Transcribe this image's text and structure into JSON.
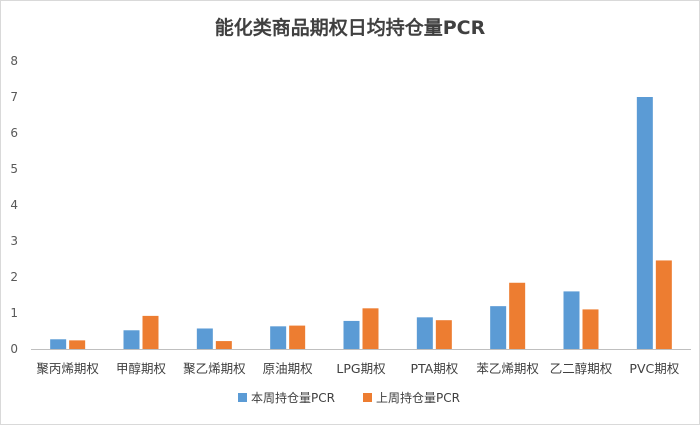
{
  "chart_data": {
    "type": "bar",
    "title": "能化类商品期权日均持仓量PCR",
    "xlabel": "",
    "ylabel": "",
    "ylim": [
      0,
      8
    ],
    "yticks": [
      0,
      1,
      2,
      3,
      4,
      5,
      6,
      7,
      8
    ],
    "grid": false,
    "legend_position": "bottom",
    "categories": [
      "聚丙烯期权",
      "甲醇期权",
      "聚乙烯期权",
      "原油期权",
      "LPG期权",
      "PTA期权",
      "苯乙烯期权",
      "乙二醇期权",
      "PVC期权"
    ],
    "series": [
      {
        "name": "本周持仓量PCR",
        "color": "#5b9bd5",
        "values": [
          0.27,
          0.52,
          0.57,
          0.63,
          0.78,
          0.88,
          1.19,
          1.6,
          7.0
        ]
      },
      {
        "name": "上周持仓量PCR",
        "color": "#ed7d31",
        "values": [
          0.24,
          0.92,
          0.22,
          0.65,
          1.13,
          0.8,
          1.84,
          1.1,
          2.46
        ]
      }
    ]
  }
}
